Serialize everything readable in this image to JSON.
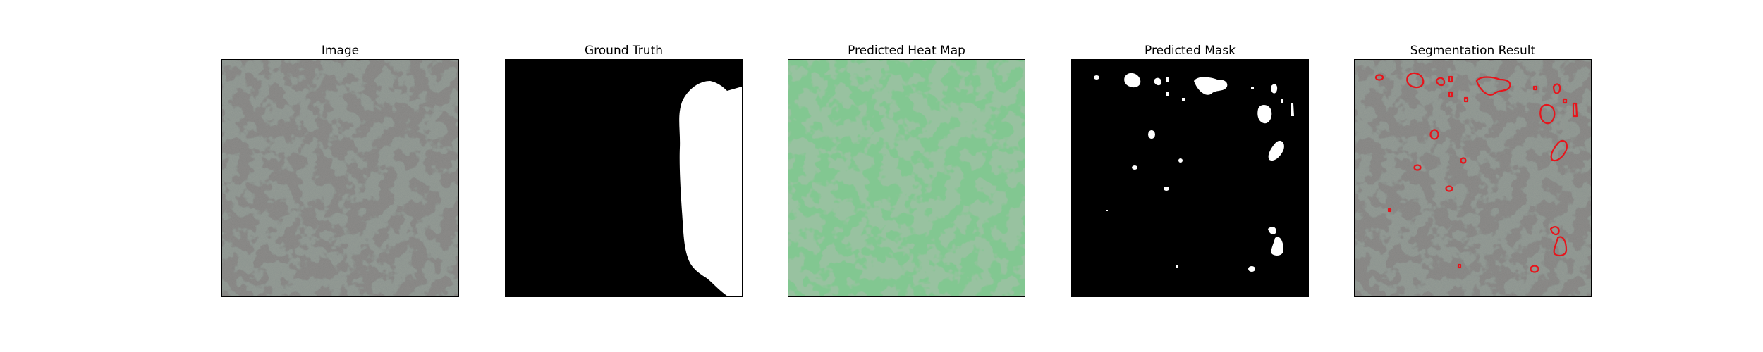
{
  "figure": {
    "panels": [
      {
        "title": "Image",
        "kind": "texture-photo"
      },
      {
        "title": "Ground Truth",
        "kind": "binary-mask"
      },
      {
        "title": "Predicted Heat Map",
        "kind": "heatmap-overlay"
      },
      {
        "title": "Predicted Mask",
        "kind": "binary-mask"
      },
      {
        "title": "Segmentation Result",
        "kind": "contour-overlay"
      }
    ],
    "colors": {
      "background": "#ffffff",
      "mask_foreground": "#ffffff",
      "mask_background": "#000000",
      "texture_base": "#8d9894",
      "texture_spot": "#3b3d3c",
      "heatmap_tint": "#7cc48c",
      "contour": "#e8141b"
    }
  }
}
